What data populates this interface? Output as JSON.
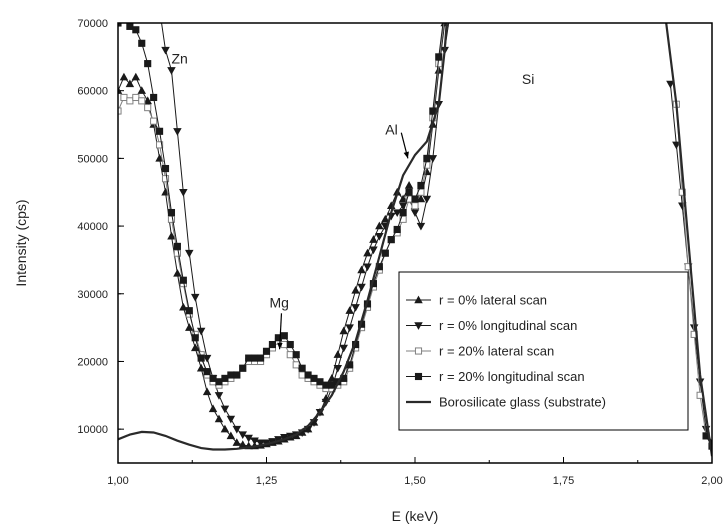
{
  "chart_data": {
    "type": "line",
    "xlabel": "E (keV)",
    "ylabel": "Intensity (cps)",
    "xlim": [
      1.0,
      2.0
    ],
    "ylim": [
      5000,
      70000
    ],
    "x_ticks": [
      1.0,
      1.25,
      1.5,
      1.75,
      2.0
    ],
    "x_tick_labels": [
      "1,00",
      "1,25",
      "1,50",
      "1,75",
      "2,00"
    ],
    "y_ticks": [
      10000,
      20000,
      30000,
      40000,
      50000,
      60000,
      70000
    ],
    "y_tick_labels": [
      "10000",
      "20000",
      "30000",
      "40000",
      "50000",
      "60000",
      "70000"
    ],
    "grid": false,
    "legend_position": "bottom-right",
    "annotations": [
      {
        "text": "Zn",
        "x": 1.09,
        "y": 64000,
        "arrow": false
      },
      {
        "text": "Si",
        "x": 1.68,
        "y": 61000,
        "arrow": false
      },
      {
        "text": "Al",
        "x": 1.45,
        "y": 53500,
        "arrow": true,
        "arrow_to": [
          1.488,
          50000
        ]
      },
      {
        "text": "Mg",
        "x": 1.255,
        "y": 28000,
        "arrow": true,
        "arrow_to": [
          1.272,
          21800
        ]
      }
    ],
    "series": [
      {
        "name": "r = 0% lateral scan",
        "marker": "triangle-up",
        "filled": true,
        "color": "#1a1a1a",
        "x": [
          1.0,
          1.01,
          1.02,
          1.03,
          1.04,
          1.05,
          1.06,
          1.07,
          1.08,
          1.09,
          1.1,
          1.11,
          1.12,
          1.13,
          1.14,
          1.15,
          1.16,
          1.17,
          1.18,
          1.19,
          1.2,
          1.21,
          1.22,
          1.23,
          1.24,
          1.25,
          1.26,
          1.27,
          1.28,
          1.29,
          1.3,
          1.31,
          1.32,
          1.33,
          1.34,
          1.35,
          1.36,
          1.37,
          1.38,
          1.39,
          1.4,
          1.41,
          1.42,
          1.43,
          1.44,
          1.45,
          1.46,
          1.47,
          1.48,
          1.49,
          1.5,
          1.51,
          1.52,
          1.53,
          1.54,
          1.55,
          1.56
        ],
        "y": [
          60000,
          62000,
          61000,
          62000,
          60000,
          58500,
          55000,
          50000,
          45000,
          38500,
          33000,
          28000,
          25000,
          22000,
          19000,
          15500,
          13000,
          11500,
          10000,
          9000,
          8000,
          7700,
          7500,
          7500,
          7600,
          7800,
          8000,
          8200,
          8500,
          8800,
          9000,
          9500,
          10000,
          11000,
          12500,
          14500,
          17500,
          21000,
          24500,
          27500,
          30500,
          33500,
          36000,
          38000,
          40000,
          41000,
          43000,
          45000,
          44000,
          46000,
          43000,
          44000,
          48000,
          55000,
          63000,
          70000,
          72000
        ]
      },
      {
        "name": "r = 0% longitudinal scan",
        "marker": "triangle-down",
        "filled": true,
        "color": "#1a1a1a",
        "x": [
          1.07,
          1.08,
          1.09,
          1.1,
          1.11,
          1.12,
          1.13,
          1.14,
          1.15,
          1.16,
          1.17,
          1.18,
          1.19,
          1.2,
          1.21,
          1.22,
          1.23,
          1.24,
          1.25,
          1.26,
          1.27,
          1.28,
          1.29,
          1.3,
          1.31,
          1.32,
          1.33,
          1.34,
          1.35,
          1.36,
          1.37,
          1.38,
          1.39,
          1.4,
          1.41,
          1.42,
          1.43,
          1.44,
          1.45,
          1.46,
          1.47,
          1.48,
          1.49,
          1.5,
          1.51,
          1.52,
          1.53,
          1.54,
          1.55,
          1.56,
          1.93,
          1.94,
          1.95,
          1.96,
          1.97,
          1.98,
          1.99,
          2.0
        ],
        "y": [
          72000,
          66000,
          63000,
          54000,
          45000,
          36000,
          29500,
          24500,
          20500,
          17500,
          15000,
          13000,
          11500,
          10000,
          9200,
          8700,
          8300,
          8000,
          8000,
          8200,
          8500,
          8800,
          9000,
          9200,
          9500,
          10000,
          11000,
          12500,
          14000,
          16000,
          19000,
          22000,
          25000,
          28000,
          31000,
          34000,
          36500,
          38500,
          40000,
          41500,
          42000,
          43000,
          44000,
          42000,
          40000,
          44000,
          50000,
          58000,
          66000,
          72000,
          61000,
          52000,
          43000,
          34000,
          25000,
          17000,
          10000,
          8000
        ]
      },
      {
        "name": "r = 20% lateral scan",
        "marker": "square",
        "filled": false,
        "color": "#808080",
        "x": [
          1.0,
          1.01,
          1.02,
          1.03,
          1.04,
          1.05,
          1.06,
          1.07,
          1.08,
          1.09,
          1.1,
          1.11,
          1.12,
          1.13,
          1.14,
          1.15,
          1.16,
          1.17,
          1.18,
          1.19,
          1.2,
          1.21,
          1.22,
          1.23,
          1.24,
          1.25,
          1.26,
          1.27,
          1.28,
          1.29,
          1.3,
          1.31,
          1.32,
          1.33,
          1.34,
          1.35,
          1.36,
          1.37,
          1.38,
          1.39,
          1.4,
          1.41,
          1.42,
          1.43,
          1.44,
          1.45,
          1.46,
          1.47,
          1.48,
          1.49,
          1.5,
          1.51,
          1.52,
          1.53,
          1.54,
          1.55,
          1.56,
          1.94,
          1.95,
          1.96,
          1.97,
          1.98,
          1.99,
          2.0
        ],
        "y": [
          57000,
          59000,
          58500,
          59000,
          58500,
          57500,
          55500,
          52000,
          47000,
          41000,
          36000,
          31500,
          27000,
          24000,
          21000,
          18000,
          17000,
          16500,
          17000,
          17500,
          18000,
          19000,
          20000,
          20000,
          20000,
          21000,
          22000,
          23000,
          22500,
          21000,
          19500,
          18000,
          17500,
          17000,
          16500,
          16000,
          16000,
          16500,
          17000,
          19000,
          22000,
          25000,
          28000,
          31000,
          33500,
          36000,
          38000,
          39000,
          41000,
          44000,
          43000,
          45000,
          49000,
          56000,
          64000,
          71000,
          73000,
          58000,
          45000,
          34000,
          24000,
          15000,
          9000,
          7500
        ]
      },
      {
        "name": "r = 20% longitudinal scan",
        "marker": "square",
        "filled": true,
        "color": "#1a1a1a",
        "x": [
          1.0,
          1.01,
          1.02,
          1.03,
          1.04,
          1.05,
          1.06,
          1.07,
          1.08,
          1.09,
          1.1,
          1.11,
          1.12,
          1.13,
          1.14,
          1.15,
          1.16,
          1.17,
          1.18,
          1.19,
          1.2,
          1.21,
          1.22,
          1.23,
          1.24,
          1.25,
          1.26,
          1.27,
          1.28,
          1.29,
          1.3,
          1.31,
          1.32,
          1.33,
          1.34,
          1.35,
          1.36,
          1.37,
          1.38,
          1.39,
          1.4,
          1.41,
          1.42,
          1.43,
          1.44,
          1.45,
          1.46,
          1.47,
          1.48,
          1.49,
          1.5,
          1.51,
          1.52,
          1.53,
          1.54,
          1.55,
          1.56,
          1.99,
          2.0
        ],
        "y": [
          70000,
          70500,
          69500,
          69000,
          67000,
          64000,
          59000,
          54000,
          48500,
          42000,
          37000,
          32000,
          27500,
          23500,
          20500,
          18500,
          17500,
          17000,
          17500,
          18000,
          18000,
          19000,
          20500,
          20500,
          20500,
          21500,
          22500,
          23500,
          23800,
          22500,
          21000,
          19000,
          18000,
          17500,
          17000,
          16500,
          16500,
          17000,
          17500,
          19500,
          22500,
          25500,
          28500,
          31500,
          34000,
          36000,
          38000,
          39500,
          42000,
          45000,
          44000,
          46000,
          50000,
          57000,
          65000,
          72000,
          74000,
          9000,
          7500
        ]
      },
      {
        "name": "Borosilicate glass (substrate)",
        "marker": "none",
        "filled": false,
        "color": "#2a2a2a",
        "x": [
          1.0,
          1.02,
          1.04,
          1.06,
          1.08,
          1.1,
          1.12,
          1.14,
          1.16,
          1.18,
          1.2,
          1.22,
          1.24,
          1.26,
          1.28,
          1.3,
          1.32,
          1.34,
          1.36,
          1.38,
          1.4,
          1.42,
          1.44,
          1.46,
          1.48,
          1.5,
          1.52,
          1.54,
          1.55,
          1.555,
          1.92,
          1.94,
          1.96,
          1.98,
          2.0
        ],
        "y": [
          8500,
          9200,
          9600,
          9500,
          9000,
          8300,
          7700,
          7200,
          7000,
          7000,
          7100,
          7300,
          7600,
          8000,
          8500,
          9200,
          10500,
          12500,
          15000,
          18500,
          23000,
          29000,
          35500,
          42000,
          47500,
          50500,
          52500,
          58000,
          66000,
          72000,
          72000,
          58000,
          38000,
          18000,
          6000
        ]
      }
    ]
  }
}
